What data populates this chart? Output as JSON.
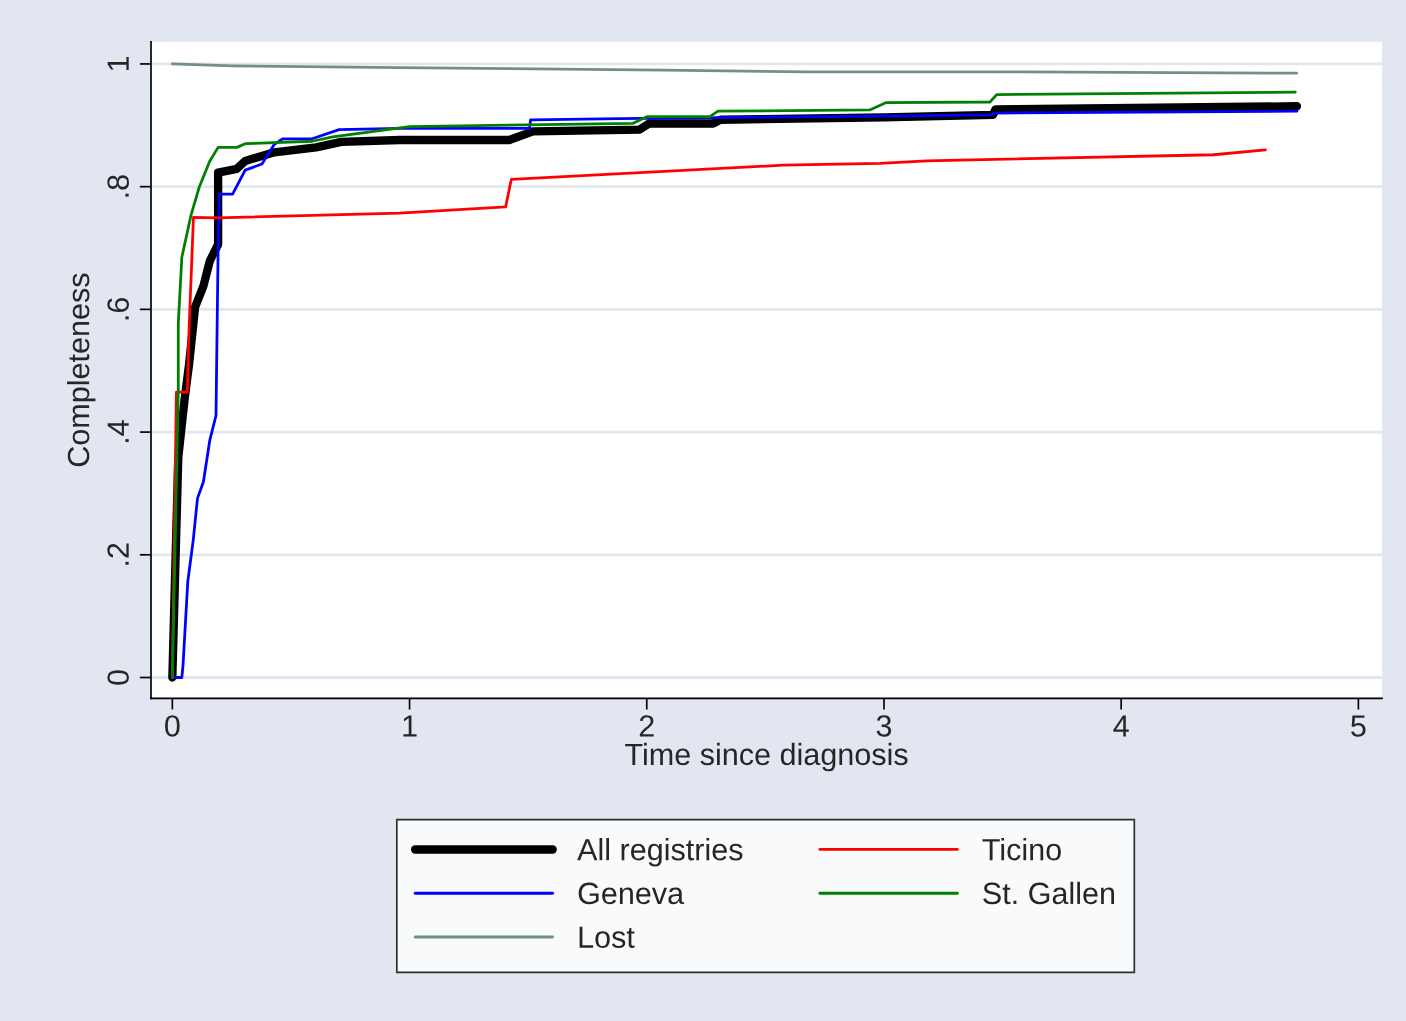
{
  "chart_data": {
    "type": "line",
    "xlabel": "Time since diagnosis",
    "ylabel": "Completeness",
    "xlim": [
      -0.09,
      5.1
    ],
    "ylim": [
      -0.034,
      1.036
    ],
    "xticks": [
      0,
      1,
      2,
      3,
      4,
      5
    ],
    "yticks": [
      {
        "value": 0,
        "label": "0"
      },
      {
        "value": 0.2,
        "label": ".2"
      },
      {
        "value": 0.4,
        "label": ".4"
      },
      {
        "value": 0.6,
        "label": ".6"
      },
      {
        "value": 0.8,
        "label": ".8"
      },
      {
        "value": 1,
        "label": "1"
      }
    ],
    "grid": "y",
    "legend": "bottom",
    "line_style": "solid",
    "series": [
      {
        "name": "All registries",
        "color": "#000000",
        "x": [
          0,
          0.025,
          0.052,
          0.07,
          0.096,
          0.131,
          0.158,
          0.193,
          0.193,
          0.272,
          0.307,
          0.43,
          0.606,
          0.712,
          0.958,
          1.42,
          1.52,
          1.97,
          2.01,
          2.28,
          2.31,
          3.0,
          3.46,
          3.47,
          4.741
        ],
        "values": [
          0,
          0.359,
          0.455,
          0.509,
          0.604,
          0.638,
          0.679,
          0.706,
          0.823,
          0.829,
          0.842,
          0.856,
          0.864,
          0.873,
          0.876,
          0.876,
          0.89,
          0.893,
          0.903,
          0.903,
          0.909,
          0.913,
          0.917,
          0.926,
          0.931
        ]
      },
      {
        "name": "Geneva",
        "color": "#0000ff",
        "x": [
          0,
          0.04,
          0.045,
          0.065,
          0.088,
          0.106,
          0.131,
          0.158,
          0.184,
          0.193,
          0.198,
          0.254,
          0.307,
          0.378,
          0.43,
          0.465,
          0.589,
          0.703,
          0.958,
          1.506,
          1.51,
          1.886,
          2.996,
          3.447,
          3.475,
          4.741
        ],
        "values": [
          0,
          0,
          0.02,
          0.156,
          0.224,
          0.292,
          0.319,
          0.387,
          0.427,
          0.7,
          0.788,
          0.788,
          0.827,
          0.837,
          0.869,
          0.878,
          0.878,
          0.893,
          0.895,
          0.895,
          0.909,
          0.911,
          0.915,
          0.917,
          0.92,
          0.923
        ]
      },
      {
        "name": "Lost",
        "color": "#738f88",
        "x": [
          0,
          0.253,
          0.958,
          2.07,
          2.675,
          3.59,
          4.74
        ],
        "values": [
          1.0,
          0.997,
          0.994,
          0.99,
          0.987,
          0.987,
          0.985
        ]
      },
      {
        "name": "Ticino",
        "color": "#ff0000",
        "x": [
          0,
          0.017,
          0.063,
          0.07,
          0.089,
          0.19,
          0.958,
          1.405,
          1.429,
          2.574,
          2.983,
          3.18,
          4.39,
          4.608
        ],
        "values": [
          0,
          0.465,
          0.465,
          0.563,
          0.75,
          0.749,
          0.757,
          0.767,
          0.812,
          0.835,
          0.838,
          0.842,
          0.852,
          0.86
        ]
      },
      {
        "name": "St. Gallen",
        "color": "#008000",
        "x": [
          0,
          0.025,
          0.025,
          0.04,
          0.079,
          0.114,
          0.157,
          0.193,
          0.272,
          0.307,
          0.589,
          0.676,
          1.0,
          1.94,
          2.0,
          2.266,
          2.3,
          2.94,
          3.01,
          3.447,
          3.475,
          4.734
        ],
        "values": [
          0,
          0.468,
          0.577,
          0.685,
          0.754,
          0.8,
          0.841,
          0.864,
          0.864,
          0.87,
          0.874,
          0.881,
          0.898,
          0.903,
          0.914,
          0.914,
          0.923,
          0.925,
          0.937,
          0.938,
          0.95,
          0.954
        ]
      }
    ]
  }
}
